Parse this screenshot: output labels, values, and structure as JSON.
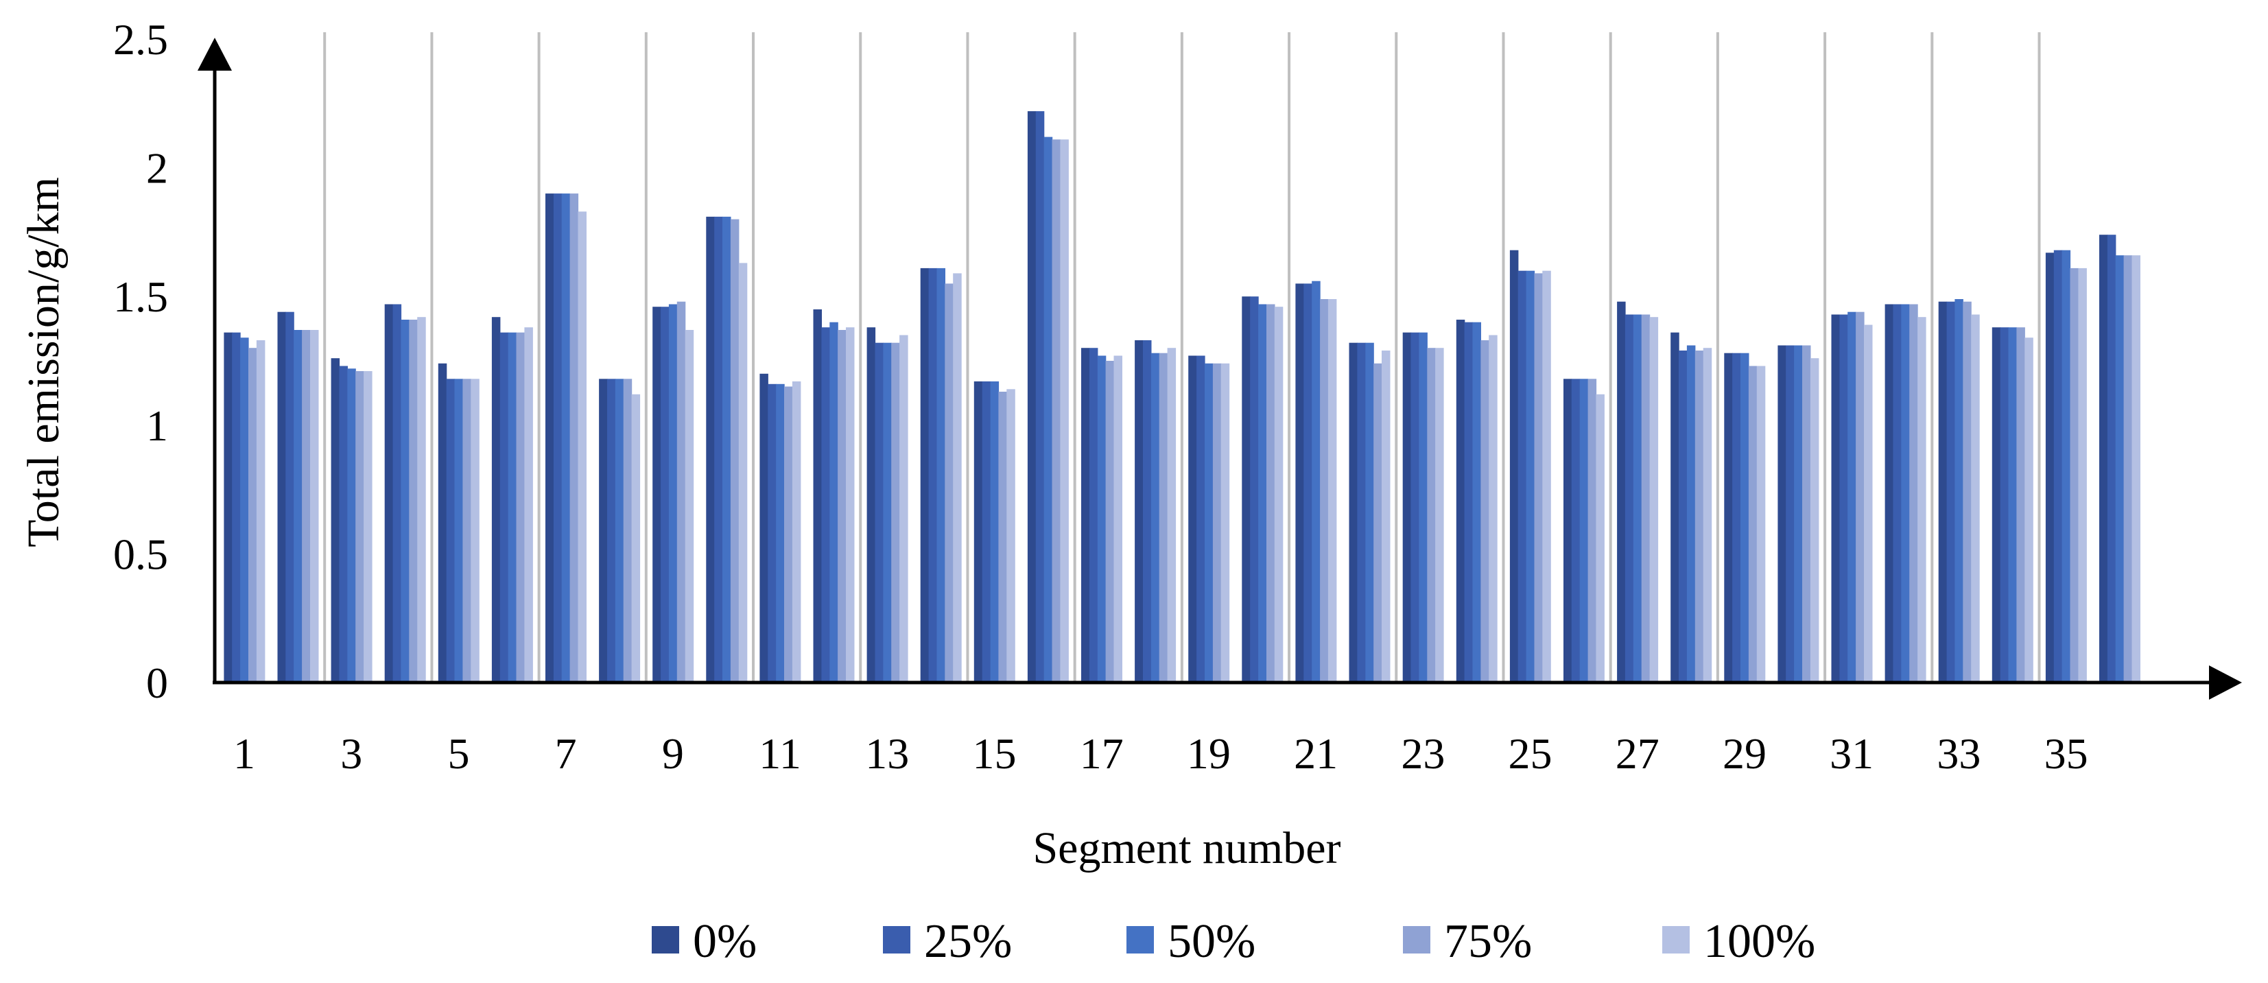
{
  "chart_data": {
    "type": "bar",
    "title": "",
    "xlabel": "Segment number",
    "ylabel": "Total emission/g/km",
    "ylim": [
      0,
      2.5
    ],
    "y_ticks": [
      "0",
      "0.5",
      "1",
      "1.5",
      "2",
      "2.5"
    ],
    "x_tick_labels": [
      "1",
      "3",
      "5",
      "7",
      "9",
      "11",
      "13",
      "15",
      "17",
      "19",
      "21",
      "23",
      "25",
      "27",
      "29",
      "31",
      "33",
      "35"
    ],
    "categories": [
      "1",
      "2",
      "3",
      "4",
      "5",
      "6",
      "7",
      "8",
      "9",
      "10",
      "11",
      "12",
      "13",
      "14",
      "15",
      "16",
      "17",
      "18",
      "19",
      "20",
      "21",
      "22",
      "23",
      "24",
      "25",
      "26",
      "27",
      "28",
      "29",
      "30",
      "31",
      "32",
      "33",
      "34",
      "35",
      "36"
    ],
    "vertical_gridlines": true,
    "legend_position": "bottom",
    "series": [
      {
        "name": "0%",
        "color": "#2E4A8F",
        "values": [
          1.36,
          1.44,
          1.26,
          1.47,
          1.24,
          1.42,
          1.9,
          1.18,
          1.46,
          1.81,
          1.2,
          1.45,
          1.38,
          1.61,
          1.17,
          2.22,
          1.3,
          1.33,
          1.27,
          1.5,
          1.55,
          1.32,
          1.36,
          1.41,
          1.68,
          1.18,
          1.48,
          1.36,
          1.28,
          1.31,
          1.43,
          1.47,
          1.48,
          1.38,
          1.67,
          1.74
        ]
      },
      {
        "name": "25%",
        "color": "#3A5DAE",
        "values": [
          1.36,
          1.44,
          1.23,
          1.47,
          1.18,
          1.36,
          1.9,
          1.18,
          1.46,
          1.81,
          1.16,
          1.38,
          1.32,
          1.61,
          1.17,
          2.22,
          1.3,
          1.33,
          1.27,
          1.5,
          1.55,
          1.32,
          1.36,
          1.4,
          1.6,
          1.18,
          1.43,
          1.29,
          1.28,
          1.31,
          1.43,
          1.47,
          1.48,
          1.38,
          1.68,
          1.74
        ]
      },
      {
        "name": "50%",
        "color": "#4472C4",
        "values": [
          1.34,
          1.37,
          1.22,
          1.41,
          1.18,
          1.36,
          1.9,
          1.18,
          1.47,
          1.81,
          1.16,
          1.4,
          1.32,
          1.61,
          1.17,
          2.12,
          1.27,
          1.28,
          1.24,
          1.47,
          1.56,
          1.32,
          1.36,
          1.4,
          1.6,
          1.18,
          1.43,
          1.31,
          1.28,
          1.31,
          1.44,
          1.47,
          1.49,
          1.38,
          1.68,
          1.66
        ]
      },
      {
        "name": "75%",
        "color": "#8FA2D4",
        "values": [
          1.3,
          1.37,
          1.21,
          1.41,
          1.18,
          1.36,
          1.9,
          1.18,
          1.48,
          1.8,
          1.15,
          1.37,
          1.32,
          1.55,
          1.13,
          2.11,
          1.25,
          1.28,
          1.24,
          1.47,
          1.49,
          1.24,
          1.3,
          1.33,
          1.59,
          1.18,
          1.43,
          1.29,
          1.23,
          1.31,
          1.44,
          1.47,
          1.48,
          1.38,
          1.61,
          1.66
        ]
      },
      {
        "name": "100%",
        "color": "#B4C0E3",
        "values": [
          1.33,
          1.37,
          1.21,
          1.42,
          1.18,
          1.38,
          1.83,
          1.12,
          1.37,
          1.63,
          1.17,
          1.38,
          1.35,
          1.59,
          1.14,
          2.11,
          1.27,
          1.3,
          1.24,
          1.46,
          1.49,
          1.29,
          1.3,
          1.35,
          1.6,
          1.12,
          1.42,
          1.3,
          1.23,
          1.26,
          1.39,
          1.42,
          1.43,
          1.34,
          1.61,
          1.66
        ]
      }
    ]
  }
}
